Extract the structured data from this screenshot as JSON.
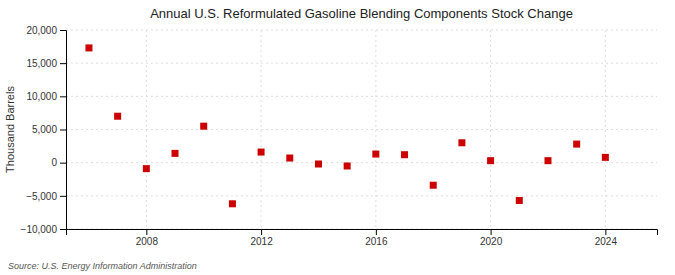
{
  "chart_data": {
    "type": "scatter",
    "title": "Annual U.S. Reformulated Gasoline Blending Components Stock Change",
    "ylabel": "Thousand Barrels",
    "source": "Source: U.S. Energy Information Administration",
    "x": [
      2006,
      2007,
      2008,
      2009,
      2010,
      2011,
      2012,
      2013,
      2014,
      2015,
      2016,
      2017,
      2018,
      2019,
      2020,
      2021,
      2022,
      2023,
      2024
    ],
    "values": [
      17300,
      7000,
      -900,
      1400,
      5500,
      -6200,
      1600,
      700,
      -200,
      -500,
      1300,
      1200,
      -3400,
      3000,
      300,
      -5700,
      300,
      2800,
      800
    ],
    "color": "#cc0000",
    "marker": "square",
    "xlim": [
      2005.2,
      2025.8
    ],
    "xticks": [
      2008,
      2012,
      2016,
      2020,
      2024
    ],
    "ylim": [
      -10000,
      20000
    ],
    "yticks": [
      {
        "value": -10000,
        "label": "−10,000"
      },
      {
        "value": -5000,
        "label": "−5,000"
      },
      0,
      {
        "value": 5000,
        "label": "5,000"
      },
      {
        "value": 10000,
        "label": "10,000"
      },
      {
        "value": 15000,
        "label": "15,000"
      },
      {
        "value": 20000,
        "label": "20,000"
      }
    ],
    "grid": true
  }
}
